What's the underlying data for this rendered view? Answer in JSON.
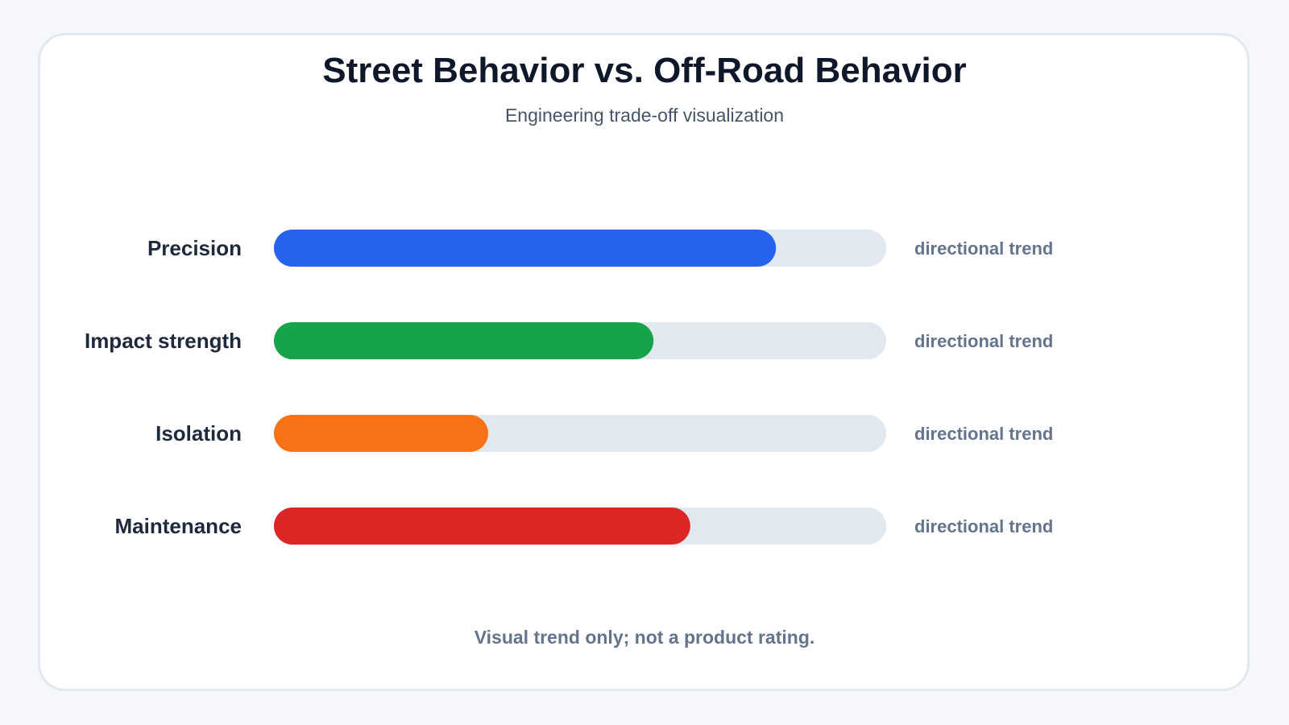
{
  "header": {
    "title": "Street Behavior vs. Off-Road Behavior",
    "subtitle": "Engineering trade-off visualization"
  },
  "footer": {
    "note": "Visual trend only; not a product rating."
  },
  "chart_data": {
    "type": "bar",
    "orientation": "horizontal",
    "title": "Street Behavior vs. Off-Road Behavior",
    "subtitle": "Engineering trade-off visualization",
    "categories": [
      "Precision",
      "Impact strength",
      "Isolation",
      "Maintenance"
    ],
    "values": [
      82,
      62,
      35,
      68
    ],
    "value_max": 100,
    "bar_colors": [
      "#2563eb",
      "#16a34a",
      "#f97316",
      "#dc2626"
    ],
    "track_color": "#e2e8f0",
    "value_labels": [
      "directional trend",
      "directional trend",
      "directional trend",
      "directional trend"
    ],
    "grid": false,
    "legend": "none",
    "note": "Visual trend only; not a product rating."
  }
}
